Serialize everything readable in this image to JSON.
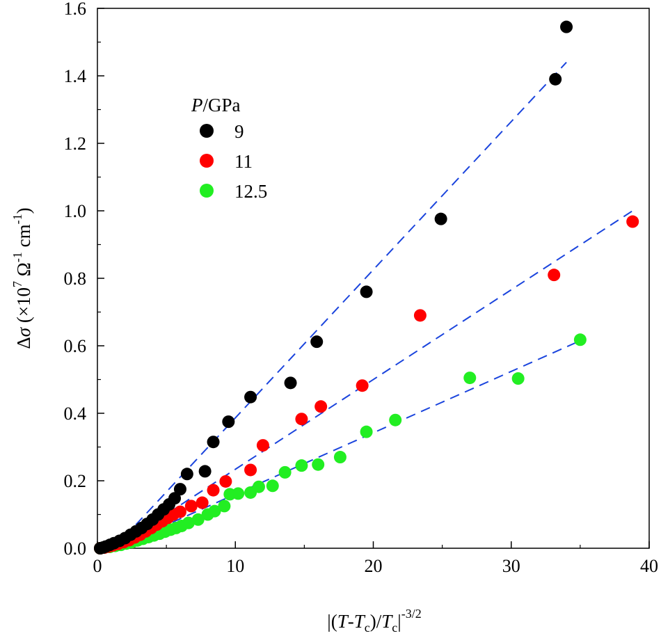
{
  "chart_data": {
    "type": "scatter",
    "title": "",
    "xlabel": "|(T-Tc)/Tc|^-3/2",
    "ylabel": "Δσ (×10^7 Ω^-1 cm^-1)",
    "xlim": [
      0,
      40
    ],
    "ylim": [
      0,
      1.6
    ],
    "xticks": [
      0,
      10,
      20,
      30,
      40
    ],
    "yticks": [
      0.0,
      0.2,
      0.4,
      0.6,
      0.8,
      1.0,
      1.2,
      1.4,
      1.6
    ],
    "xtick_labels": [
      "0",
      "10",
      "20",
      "30",
      "40"
    ],
    "ytick_labels": [
      "0.0",
      "0.2",
      "0.4",
      "0.6",
      "0.8",
      "1.0",
      "1.2",
      "1.4",
      "1.6"
    ],
    "legend": {
      "title": "P/GPa",
      "position": "top-left"
    },
    "series": [
      {
        "name": "9",
        "color": "#000000",
        "x": [
          0.2,
          0.4,
          0.6,
          0.9,
          1.2,
          1.6,
          2.0,
          2.4,
          2.8,
          3.2,
          3.6,
          4.0,
          4.4,
          4.8,
          5.2,
          5.6,
          6.0,
          6.5,
          7.8,
          8.4,
          9.5,
          11.1,
          14.0,
          15.9,
          19.5,
          24.9,
          33.2,
          34.0
        ],
        "y": [
          0.0,
          0.002,
          0.005,
          0.01,
          0.015,
          0.022,
          0.03,
          0.04,
          0.05,
          0.06,
          0.072,
          0.085,
          0.1,
          0.115,
          0.13,
          0.148,
          0.175,
          0.22,
          0.228,
          0.315,
          0.375,
          0.448,
          0.49,
          0.612,
          0.76,
          0.976,
          1.39,
          1.545
        ]
      },
      {
        "name": "11",
        "color": "#ff0000",
        "x": [
          0.2,
          0.5,
          0.8,
          1.1,
          1.5,
          1.9,
          2.3,
          2.7,
          3.1,
          3.5,
          3.9,
          4.3,
          4.7,
          5.1,
          5.5,
          6.0,
          6.8,
          7.6,
          8.4,
          9.3,
          11.1,
          12.0,
          14.8,
          16.2,
          19.2,
          23.4,
          33.1,
          38.8
        ],
        "y": [
          0.0,
          0.002,
          0.005,
          0.008,
          0.013,
          0.018,
          0.024,
          0.032,
          0.04,
          0.05,
          0.06,
          0.07,
          0.08,
          0.09,
          0.1,
          0.108,
          0.125,
          0.135,
          0.172,
          0.198,
          0.232,
          0.305,
          0.383,
          0.42,
          0.482,
          0.69,
          0.81,
          0.968
        ]
      },
      {
        "name": "12.5",
        "color": "#22ee22",
        "x": [
          0.2,
          0.5,
          0.9,
          1.3,
          1.7,
          2.1,
          2.5,
          2.9,
          3.3,
          3.7,
          4.1,
          4.5,
          4.9,
          5.3,
          5.7,
          6.1,
          6.6,
          7.3,
          8.0,
          8.5,
          9.2,
          9.6,
          10.2,
          11.1,
          11.7,
          12.7,
          13.6,
          14.8,
          16.0,
          17.6,
          19.5,
          21.6,
          27.0,
          30.5,
          35.0
        ],
        "y": [
          0.0,
          0.002,
          0.004,
          0.007,
          0.01,
          0.014,
          0.018,
          0.023,
          0.028,
          0.033,
          0.038,
          0.043,
          0.049,
          0.055,
          0.06,
          0.066,
          0.075,
          0.085,
          0.1,
          0.11,
          0.125,
          0.16,
          0.162,
          0.165,
          0.182,
          0.185,
          0.225,
          0.245,
          0.248,
          0.27,
          0.345,
          0.38,
          0.505,
          0.503,
          0.618
        ]
      }
    ],
    "fit_lines": [
      {
        "name": "fit-9",
        "x": [
          1.2,
          34.0
        ],
        "y": [
          0.0,
          1.44
        ]
      },
      {
        "name": "fit-11",
        "x": [
          1.2,
          38.8
        ],
        "y": [
          0.0,
          1.0
        ]
      },
      {
        "name": "fit-12.5",
        "x": [
          1.2,
          35.0
        ],
        "y": [
          0.0,
          0.615
        ]
      }
    ],
    "fit_color": "#1a44dd"
  }
}
